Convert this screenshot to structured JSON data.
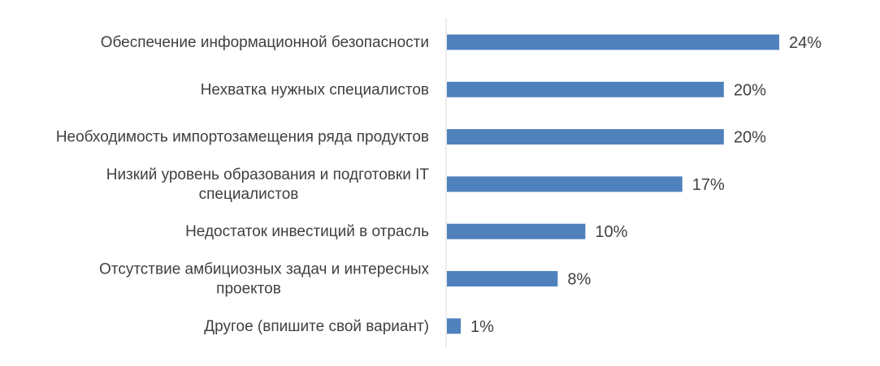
{
  "chart_data": {
    "type": "bar",
    "orientation": "horizontal",
    "categories": [
      [
        "Обеспечение информационной безопасности"
      ],
      [
        "Нехватка нужных специалистов"
      ],
      [
        "Необходимость импортозамещения ряда продуктов"
      ],
      [
        "Низкий уровень образования и подготовки IT",
        "специалистов"
      ],
      [
        "Недостаток инвестиций в отрасль"
      ],
      [
        "Отсутствие амбициозных задач и интересных",
        "проектов"
      ],
      [
        "Другое (впишите свой вариант)"
      ]
    ],
    "values": [
      24,
      20,
      20,
      17,
      10,
      8,
      1
    ],
    "value_labels": [
      "24%",
      "20%",
      "20%",
      "17%",
      "10%",
      "8%",
      "1%"
    ],
    "value_unit": "%",
    "xlim": [
      0,
      24
    ],
    "grid": false,
    "legend": "none",
    "colors": {
      "bar": "#4f81bd",
      "axis": "#d9d9d9",
      "text": "#404040"
    }
  }
}
